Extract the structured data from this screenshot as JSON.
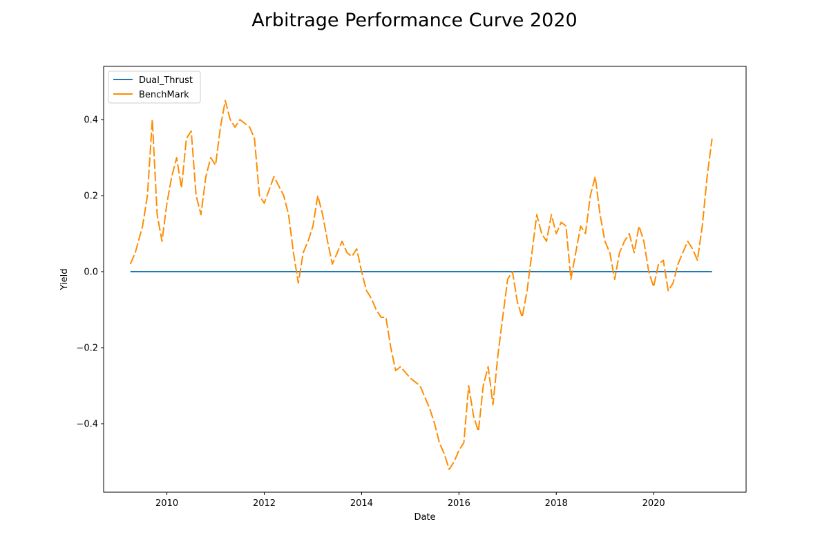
{
  "chart_data": {
    "type": "line",
    "title": "Arbitrage Performance Curve 2020",
    "xlabel": "Date",
    "ylabel": "Yield",
    "x_ticks": [
      "2010",
      "2012",
      "2014",
      "2016",
      "2018",
      "2020"
    ],
    "y_ticks": [
      "−0.4",
      "−0.2",
      "0.0",
      "0.2",
      "0.4"
    ],
    "xlim": [
      2008.7,
      2021.9
    ],
    "ylim": [
      -0.58,
      0.54
    ],
    "grid": false,
    "legend_position": "upper-left",
    "series": [
      {
        "name": "Dual_Thrust",
        "color": "#1f77b4",
        "dashed": false,
        "x": [
          2009.25,
          2021.2
        ],
        "y": [
          0.0,
          0.0
        ]
      },
      {
        "name": "BenchMark",
        "color": "#ff8c00",
        "dashed": true,
        "x": [
          2009.25,
          2009.35,
          2009.5,
          2009.6,
          2009.7,
          2009.8,
          2009.9,
          2010.0,
          2010.1,
          2010.2,
          2010.3,
          2010.4,
          2010.5,
          2010.6,
          2010.7,
          2010.8,
          2010.9,
          2011.0,
          2011.1,
          2011.2,
          2011.3,
          2011.4,
          2011.5,
          2011.6,
          2011.7,
          2011.8,
          2011.9,
          2012.0,
          2012.2,
          2012.4,
          2012.5,
          2012.6,
          2012.7,
          2012.8,
          2012.9,
          2013.0,
          2013.1,
          2013.2,
          2013.3,
          2013.4,
          2013.5,
          2013.6,
          2013.7,
          2013.8,
          2013.9,
          2014.0,
          2014.1,
          2014.2,
          2014.3,
          2014.4,
          2014.5,
          2014.6,
          2014.7,
          2014.8,
          2015.0,
          2015.2,
          2015.4,
          2015.5,
          2015.6,
          2015.7,
          2015.8,
          2015.9,
          2016.0,
          2016.1,
          2016.2,
          2016.3,
          2016.4,
          2016.5,
          2016.6,
          2016.7,
          2016.8,
          2016.9,
          2017.0,
          2017.1,
          2017.2,
          2017.3,
          2017.4,
          2017.5,
          2017.6,
          2017.7,
          2017.8,
          2017.9,
          2018.0,
          2018.1,
          2018.2,
          2018.3,
          2018.4,
          2018.5,
          2018.6,
          2018.7,
          2018.8,
          2018.9,
          2019.0,
          2019.1,
          2019.2,
          2019.3,
          2019.4,
          2019.5,
          2019.6,
          2019.7,
          2019.8,
          2019.9,
          2020.0,
          2020.1,
          2020.2,
          2020.3,
          2020.4,
          2020.5,
          2020.6,
          2020.7,
          2020.8,
          2020.9,
          2021.0,
          2021.1,
          2021.2
        ],
        "y": [
          0.02,
          0.05,
          0.12,
          0.2,
          0.4,
          0.15,
          0.08,
          0.18,
          0.25,
          0.3,
          0.22,
          0.35,
          0.37,
          0.2,
          0.15,
          0.25,
          0.3,
          0.28,
          0.38,
          0.45,
          0.4,
          0.38,
          0.4,
          0.39,
          0.38,
          0.35,
          0.2,
          0.18,
          0.25,
          0.2,
          0.15,
          0.05,
          -0.03,
          0.05,
          0.08,
          0.12,
          0.2,
          0.15,
          0.08,
          0.02,
          0.05,
          0.08,
          0.05,
          0.04,
          0.06,
          0.0,
          -0.05,
          -0.07,
          -0.1,
          -0.12,
          -0.12,
          -0.2,
          -0.26,
          -0.25,
          -0.28,
          -0.3,
          -0.36,
          -0.4,
          -0.45,
          -0.48,
          -0.52,
          -0.5,
          -0.47,
          -0.45,
          -0.3,
          -0.38,
          -0.42,
          -0.3,
          -0.25,
          -0.35,
          -0.22,
          -0.12,
          -0.02,
          0.0,
          -0.08,
          -0.12,
          -0.05,
          0.05,
          0.15,
          0.1,
          0.08,
          0.15,
          0.1,
          0.13,
          0.12,
          -0.02,
          0.05,
          0.12,
          0.1,
          0.2,
          0.25,
          0.15,
          0.08,
          0.05,
          -0.02,
          0.05,
          0.08,
          0.1,
          0.05,
          0.12,
          0.08,
          0.0,
          -0.04,
          0.02,
          0.03,
          -0.05,
          -0.03,
          0.02,
          0.05,
          0.08,
          0.06,
          0.03,
          0.12,
          0.25,
          0.35
        ]
      }
    ]
  }
}
